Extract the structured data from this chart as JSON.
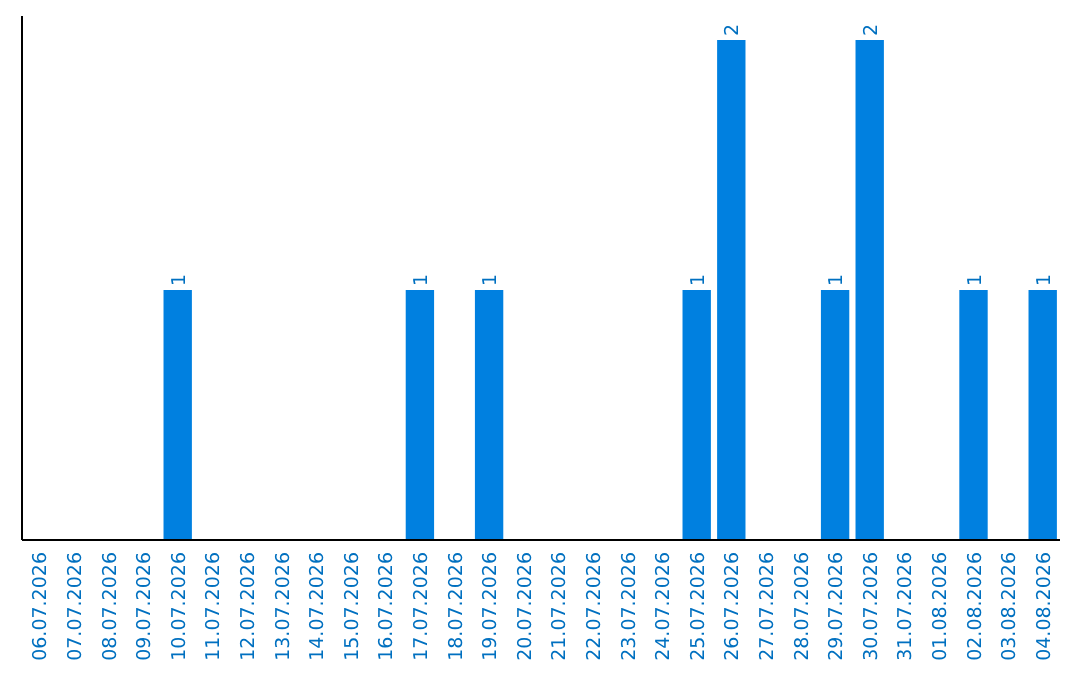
{
  "chart_data": {
    "type": "bar",
    "categories": [
      "06.07.2026",
      "07.07.2026",
      "08.07.2026",
      "09.07.2026",
      "10.07.2026",
      "11.07.2026",
      "12.07.2026",
      "13.07.2026",
      "14.07.2026",
      "15.07.2026",
      "16.07.2026",
      "17.07.2026",
      "18.07.2026",
      "19.07.2026",
      "20.07.2026",
      "21.07.2026",
      "22.07.2026",
      "23.07.2026",
      "24.07.2026",
      "25.07.2026",
      "26.07.2026",
      "27.07.2026",
      "28.07.2026",
      "29.07.2026",
      "30.07.2026",
      "31.07.2026",
      "01.08.2026",
      "02.08.2026",
      "03.08.2026",
      "04.08.2026"
    ],
    "values": [
      0,
      0,
      0,
      0,
      1,
      0,
      0,
      0,
      0,
      0,
      0,
      1,
      0,
      1,
      0,
      0,
      0,
      0,
      0,
      1,
      2,
      0,
      0,
      1,
      2,
      0,
      0,
      1,
      0,
      1
    ],
    "color": "#0080e0",
    "value_labels": [
      null,
      null,
      null,
      null,
      "1",
      null,
      null,
      null,
      null,
      null,
      null,
      "1",
      null,
      "1",
      null,
      null,
      null,
      null,
      null,
      "1",
      "2",
      null,
      null,
      "1",
      "2",
      null,
      null,
      "1",
      null,
      "1"
    ]
  }
}
